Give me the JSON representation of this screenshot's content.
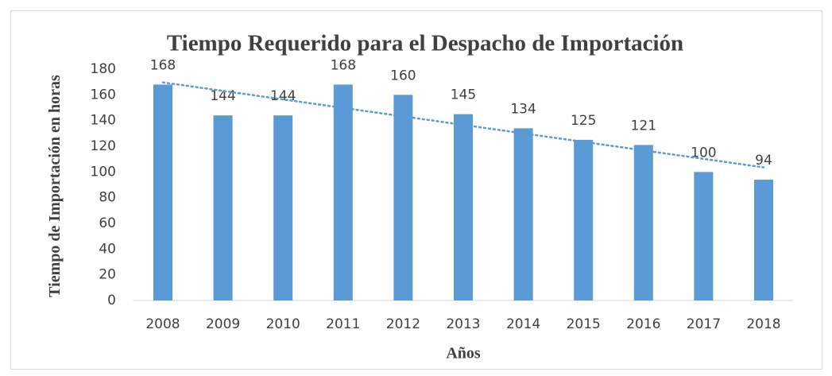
{
  "chart_data": {
    "type": "bar",
    "title": "Tiempo Requerido para el Despacho de Importación",
    "x_label": "Años",
    "y_label": "Tiempo de Importación en horas",
    "categories": [
      "2008",
      "2009",
      "2010",
      "2011",
      "2012",
      "2013",
      "2014",
      "2015",
      "2016",
      "2017",
      "2018"
    ],
    "values": [
      168,
      144,
      144,
      168,
      160,
      145,
      134,
      125,
      121,
      100,
      94
    ],
    "color": "#5b9bd5",
    "ylim": [
      0,
      180
    ],
    "yticks": [
      0,
      20,
      40,
      60,
      80,
      100,
      120,
      140,
      160,
      180
    ],
    "grid": false,
    "trendline": "linear",
    "trendline_color": "#5b9bd5"
  }
}
